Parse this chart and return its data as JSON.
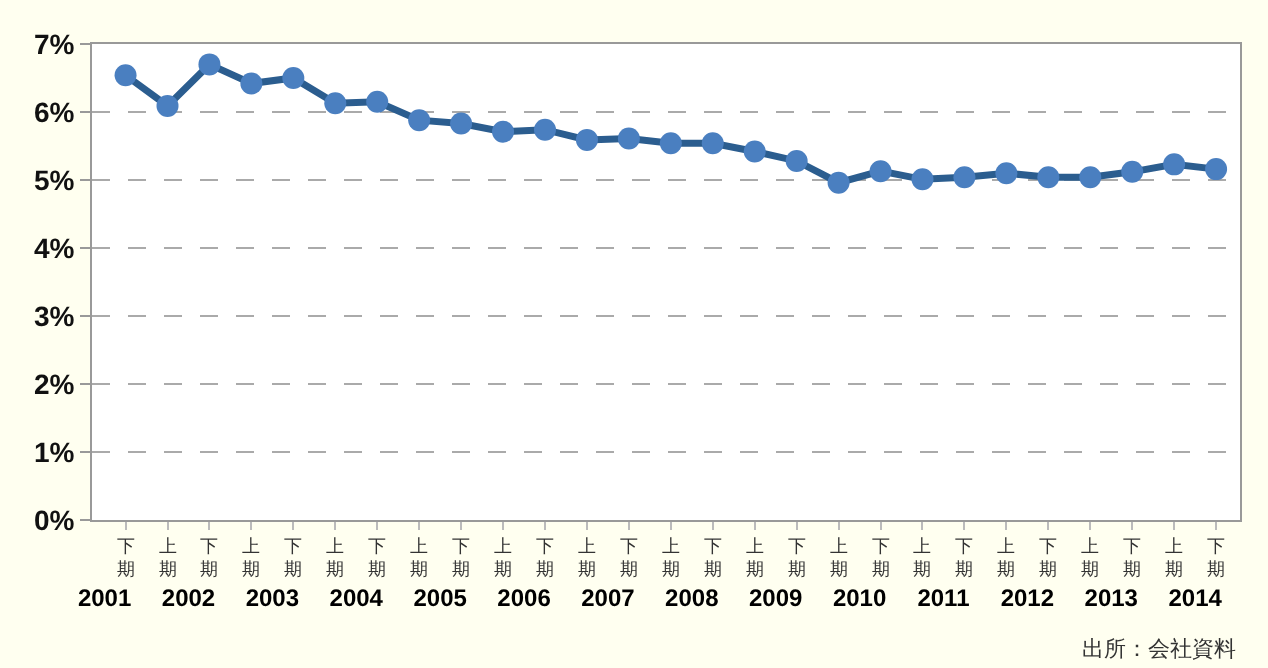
{
  "chart_data": {
    "type": "line",
    "categories": [
      "下期",
      "上期",
      "下期",
      "上期",
      "下期",
      "上期",
      "下期",
      "上期",
      "下期",
      "上期",
      "下期",
      "上期",
      "下期",
      "上期",
      "下期",
      "上期",
      "下期",
      "上期",
      "下期",
      "上期",
      "下期",
      "上期",
      "下期",
      "上期",
      "下期",
      "上期",
      "下期"
    ],
    "series": [
      {
        "color": "#2b5d8f",
        "values": [
          6.54,
          6.09,
          6.7,
          6.42,
          6.5,
          6.13,
          6.15,
          5.88,
          5.83,
          5.71,
          5.74,
          5.59,
          5.61,
          5.54,
          5.54,
          5.42,
          5.28,
          4.96,
          5.13,
          5.01,
          5.04,
          5.1,
          5.04,
          5.04,
          5.12,
          5.23,
          5.16
        ]
      }
    ],
    "x2lim": [
      2000.85,
      2014.535
    ],
    "x2ticks": [
      2001,
      2002,
      2003,
      2004,
      2005,
      2006,
      2007,
      2008,
      2009,
      2010,
      2011,
      2012,
      2013,
      2014
    ],
    "ylim": [
      0,
      7
    ],
    "yticks": [
      {
        "value": 0,
        "label": "0%"
      },
      {
        "value": 1,
        "label": "1%"
      },
      {
        "value": 2,
        "label": "2%"
      },
      {
        "value": 3,
        "label": "3%"
      },
      {
        "value": 4,
        "label": "4%"
      },
      {
        "value": 5,
        "label": "5%"
      },
      {
        "value": 6,
        "label": "6%"
      },
      {
        "value": 7,
        "label": "7%"
      }
    ],
    "grid": "y",
    "marker": "circle",
    "line_style": "solid",
    "annotations": [
      "出所：会社資料"
    ]
  }
}
